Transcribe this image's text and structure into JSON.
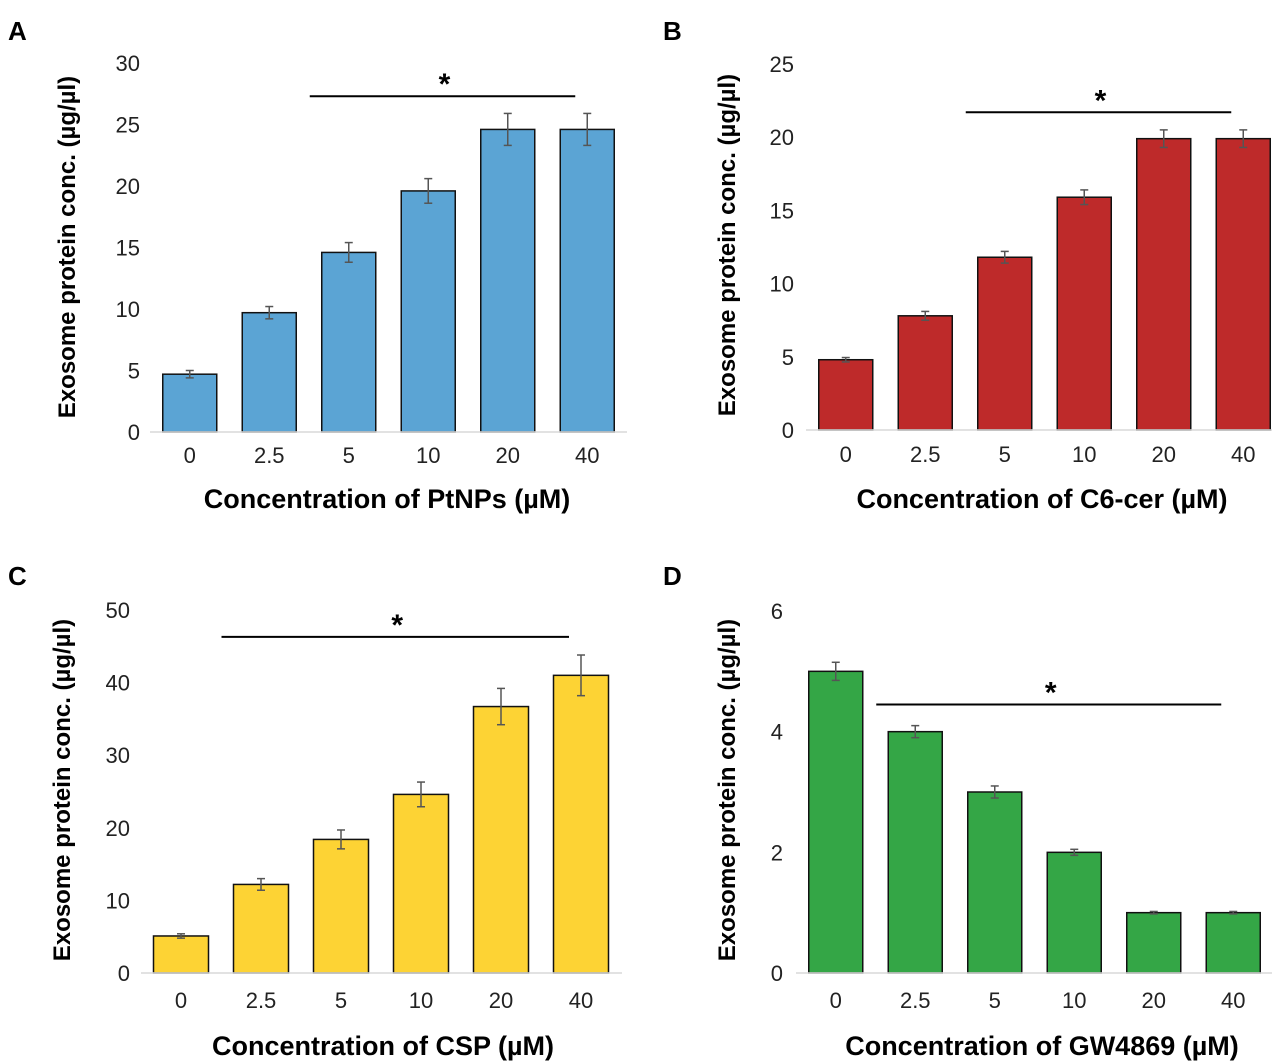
{
  "chart_data": [
    {
      "panel": "A",
      "type": "bar",
      "categories": [
        "0",
        "2.5",
        "5",
        "10",
        "20",
        "40"
      ],
      "values": [
        4.7,
        9.7,
        14.6,
        19.6,
        24.6,
        24.6
      ],
      "errors": [
        0.3,
        0.5,
        0.8,
        1.0,
        1.3,
        1.3
      ],
      "color": "#5BA4D4",
      "ylim": [
        0,
        30
      ],
      "yticks": [
        "0",
        "5",
        "10",
        "15",
        "20",
        "25",
        "30"
      ],
      "xlabel": "Concentration of PtNPs (µM)",
      "ylabel": "Exosome protein conc. (µg/µl)",
      "significance": {
        "label": "*",
        "from_category": "5",
        "to_category": "40",
        "y": 27.3
      }
    },
    {
      "panel": "B",
      "type": "bar",
      "categories": [
        "0",
        "2.5",
        "5",
        "10",
        "20",
        "40"
      ],
      "values": [
        4.8,
        7.8,
        11.8,
        15.9,
        19.9,
        19.9
      ],
      "errors": [
        0.15,
        0.3,
        0.4,
        0.5,
        0.6,
        0.6
      ],
      "color": "#BE2A2A",
      "ylim": [
        0,
        25
      ],
      "yticks": [
        "0",
        "5",
        "10",
        "15",
        "20",
        "25"
      ],
      "xlabel": "Concentration of C6-cer (µM)",
      "ylabel": "Exosome protein conc. (µg/µl)",
      "significance": {
        "label": "*",
        "from_category": "5",
        "to_category": "40",
        "y": 21.7
      }
    },
    {
      "panel": "C",
      "type": "bar",
      "categories": [
        "0",
        "2.5",
        "5",
        "10",
        "20",
        "40"
      ],
      "values": [
        5.1,
        12.2,
        18.4,
        24.6,
        36.7,
        41.0
      ],
      "errors": [
        0.3,
        0.8,
        1.3,
        1.7,
        2.5,
        2.8
      ],
      "color": "#FDD334",
      "ylim": [
        0,
        50
      ],
      "yticks": [
        "0",
        "10",
        "20",
        "30",
        "40",
        "50"
      ],
      "xlabel": "Concentration of CSP (µM)",
      "ylabel": "Exosome protein conc. (µg/µl)",
      "significance": {
        "label": "*",
        "from_category": "2.5",
        "to_category": "40",
        "y": 46.3
      }
    },
    {
      "panel": "D",
      "type": "bar",
      "categories": [
        "0",
        "2.5",
        "5",
        "10",
        "20",
        "40"
      ],
      "values": [
        5.0,
        4.0,
        3.0,
        2.0,
        1.0,
        1.0
      ],
      "errors": [
        0.15,
        0.1,
        0.1,
        0.05,
        0.02,
        0.02
      ],
      "color": "#34A646",
      "ylim": [
        0,
        6
      ],
      "yticks": [
        "0",
        "2",
        "4",
        "6"
      ],
      "xlabel": "Concentration of GW4869 (µM)",
      "ylabel": "Exosome protein conc. (µg/µl)",
      "significance": {
        "label": "*",
        "from_category": "2.5",
        "to_category": "40",
        "y": 4.45
      }
    }
  ]
}
